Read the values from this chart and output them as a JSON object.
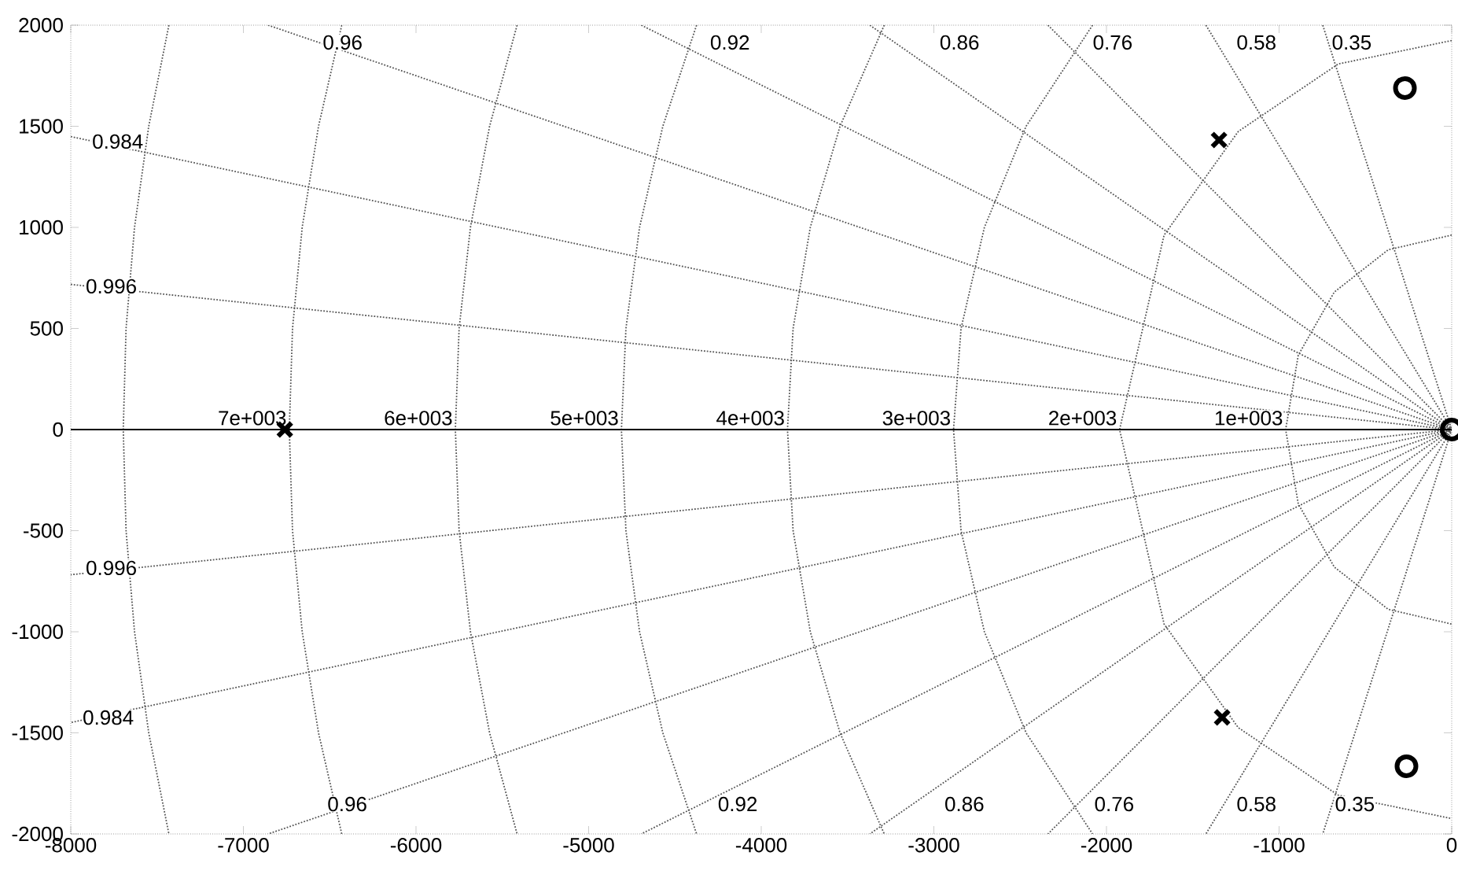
{
  "chart_data": {
    "type": "scatter",
    "xlim": [
      -8000,
      0
    ],
    "ylim": [
      -2000,
      2000
    ],
    "xticks": [
      -8000,
      -7000,
      -6000,
      -5000,
      -4000,
      -3000,
      -2000,
      -1000,
      0
    ],
    "yticks": [
      -2000,
      -1500,
      -1000,
      -500,
      0,
      500,
      1000,
      1500,
      2000
    ],
    "ref_lines": [
      {
        "axis": "y",
        "value": 0,
        "color": "#000000",
        "line_style": "solid"
      }
    ],
    "series": [
      {
        "type": "line",
        "color": "#555555",
        "line_style": "dotted",
        "x": [
          -8000,
          0,
          -8000
        ],
        "values": [
          718,
          0,
          -718
        ]
      },
      {
        "type": "line",
        "color": "#555555",
        "line_style": "dotted",
        "x": [
          -8000,
          0,
          -8000
        ],
        "values": [
          1449,
          0,
          -1449
        ]
      },
      {
        "type": "line",
        "color": "#555555",
        "line_style": "dotted",
        "x": [
          -6857,
          0,
          -6857
        ],
        "values": [
          2000,
          0,
          -2000
        ]
      },
      {
        "type": "line",
        "color": "#555555",
        "line_style": "dotted",
        "x": [
          -4695,
          0,
          -4695
        ],
        "values": [
          2000,
          0,
          -2000
        ]
      },
      {
        "type": "line",
        "color": "#555555",
        "line_style": "dotted",
        "x": [
          -3371,
          0,
          -3371
        ],
        "values": [
          2000,
          0,
          -2000
        ]
      },
      {
        "type": "line",
        "color": "#555555",
        "line_style": "dotted",
        "x": [
          -2339,
          0,
          -2339
        ],
        "values": [
          2000,
          0,
          -2000
        ]
      },
      {
        "type": "line",
        "color": "#555555",
        "line_style": "dotted",
        "x": [
          -1424,
          0,
          -1424
        ],
        "values": [
          2000,
          0,
          -2000
        ]
      },
      {
        "type": "line",
        "color": "#555555",
        "line_style": "dotted",
        "x": [
          -747,
          0,
          -747
        ],
        "values": [
          2000,
          0,
          -2000
        ]
      },
      {
        "type": "line",
        "color": "#555555",
        "line_style": "dotted",
        "x": [
          -7431.6,
          -7548.4,
          -7630.7,
          -7679.7,
          -7696,
          -7679.7,
          -7630.7,
          -7548.4,
          -7431.6
        ],
        "values": [
          2000,
          1500,
          1000,
          500,
          0,
          -500,
          -1000,
          -1500,
          -2000
        ]
      },
      {
        "type": "line",
        "color": "#555555",
        "line_style": "dotted",
        "x": [
          -6430.2,
          -6564.8,
          -6659.3,
          -6715.4,
          -6734,
          -6715.4,
          -6659.3,
          -6564.8,
          -6430.2
        ],
        "values": [
          2000,
          1500,
          1000,
          500,
          0,
          -500,
          -1000,
          -1500,
          -2000
        ]
      },
      {
        "type": "line",
        "color": "#555555",
        "line_style": "dotted",
        "x": [
          -5414.4,
          -5573.7,
          -5684.7,
          -5750.3,
          -5772,
          -5750.3,
          -5684.7,
          -5573.7,
          -5414.4
        ],
        "values": [
          2000,
          1500,
          1000,
          500,
          0,
          -500,
          -1000,
          -1500,
          -2000
        ]
      },
      {
        "type": "line",
        "color": "#555555",
        "line_style": "dotted",
        "x": [
          -4374.5,
          -4570.1,
          -4704.9,
          -4783.9,
          -4810,
          -4783.9,
          -4704.9,
          -4570.1,
          -4374.5
        ],
        "values": [
          2000,
          1500,
          1000,
          500,
          0,
          -500,
          -1000,
          -1500,
          -2000
        ]
      },
      {
        "type": "line",
        "color": "#555555",
        "line_style": "dotted",
        "x": [
          -3287.4,
          -3543.6,
          -3715.8,
          -3815.4,
          -3848,
          -3815.4,
          -3715.8,
          -3543.6,
          -3287.4
        ],
        "values": [
          2000,
          1500,
          1000,
          500,
          0,
          -500,
          -1000,
          -1500,
          -2000
        ]
      },
      {
        "type": "line",
        "color": "#555555",
        "line_style": "dotted",
        "x": [
          -2080.6,
          -2465.6,
          -2707.2,
          -2842.4,
          -2886,
          -2842.4,
          -2707.2,
          -2465.6,
          -2080.6
        ],
        "values": [
          2000,
          1500,
          1000,
          500,
          0,
          -500,
          -1000,
          -1500,
          -2000
        ]
      },
      {
        "type": "line",
        "color": "#555555",
        "line_style": "dotted",
        "x": [
          0,
          -658.0,
          -1236.7,
          -1666.2,
          -1924,
          -1666.2,
          -1236.7,
          -658.0,
          0
        ],
        "values": [
          1924,
          1808,
          1474,
          962,
          0,
          -962,
          -1474,
          -1808,
          -1924
        ]
      },
      {
        "type": "line",
        "color": "#555555",
        "line_style": "dotted",
        "x": [
          0,
          -368.1,
          -680.2,
          -888.8,
          -962,
          -888.8,
          -680.2,
          -368.1,
          0
        ],
        "values": [
          962,
          889,
          680,
          368,
          0,
          -368,
          -680,
          -889,
          -962
        ]
      },
      {
        "marker": "cross",
        "color": "#000000",
        "x": [
          -6760,
          -1348,
          -1330
        ],
        "values": [
          0,
          1432,
          -1424
        ]
      },
      {
        "marker": "circle",
        "color": "#000000",
        "x": [
          -271,
          -262,
          0
        ],
        "values": [
          1689,
          -1665,
          0
        ]
      }
    ],
    "annotations": [
      {
        "text": "0.96",
        "x": -6416,
        "y": 1899
      },
      {
        "text": "0.92",
        "x": -4172,
        "y": 1899
      },
      {
        "text": "0.86",
        "x": -2842,
        "y": 1899
      },
      {
        "text": "0.76",
        "x": -1955,
        "y": 1899
      },
      {
        "text": "0.58",
        "x": -1122,
        "y": 1899
      },
      {
        "text": "0.35",
        "x": -570,
        "y": 1899
      },
      {
        "text": "0.984",
        "x": -7719,
        "y": 1409
      },
      {
        "text": "0.996",
        "x": -7756,
        "y": 693
      },
      {
        "text": "0.996",
        "x": -7756,
        "y": -700
      },
      {
        "text": "0.984",
        "x": -7774,
        "y": -1440
      },
      {
        "text": "0.96",
        "x": -6389,
        "y": -1868
      },
      {
        "text": "0.92",
        "x": -4127,
        "y": -1868
      },
      {
        "text": "0.86",
        "x": -2814,
        "y": -1868
      },
      {
        "text": "0.76",
        "x": -1946,
        "y": -1868
      },
      {
        "text": "0.58",
        "x": -1122,
        "y": -1868
      },
      {
        "text": "0.35",
        "x": -552,
        "y": -1868
      },
      {
        "text": "7e+003",
        "x": -6734,
        "y": 0
      },
      {
        "text": "6e+003",
        "x": -5772,
        "y": 0
      },
      {
        "text": "5e+003",
        "x": -4810,
        "y": 0
      },
      {
        "text": "4e+003",
        "x": -3848,
        "y": 0
      },
      {
        "text": "3e+003",
        "x": -2886,
        "y": 0
      },
      {
        "text": "2e+003",
        "x": -1924,
        "y": 0
      },
      {
        "text": "1e+003",
        "x": -962,
        "y": 0
      }
    ]
  }
}
